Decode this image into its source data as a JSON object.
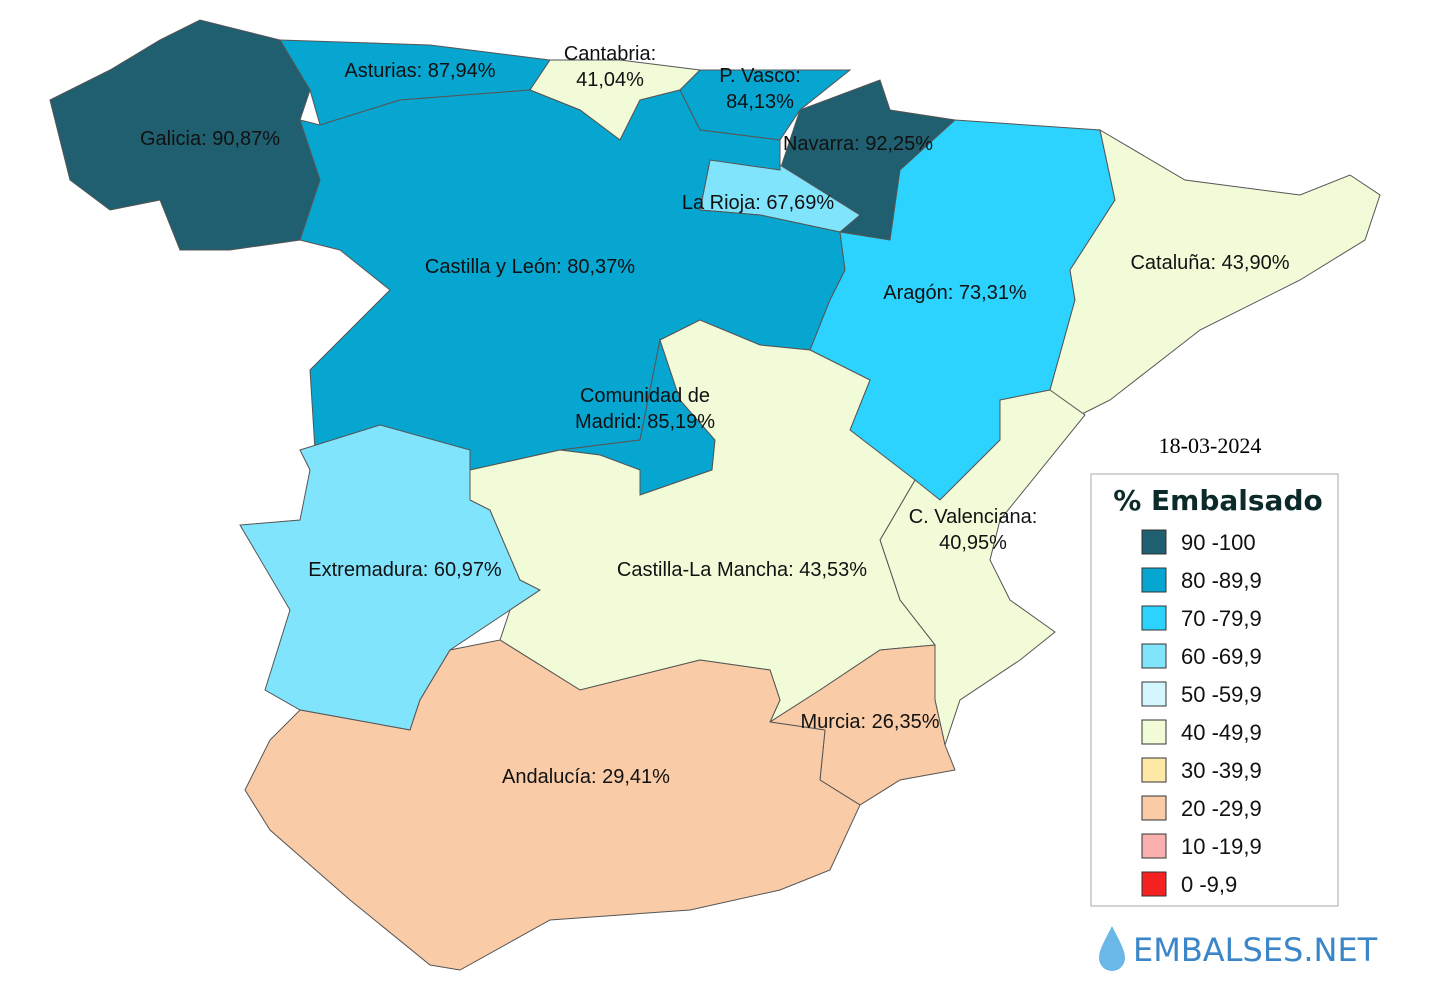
{
  "date": "18-03-2024",
  "regions": [
    {
      "lines": [
        "Galicia: 90,87%"
      ],
      "color": "#1f5f6f"
    },
    {
      "lines": [
        "Asturias: 87,94%"
      ],
      "color": "#06a6d1"
    },
    {
      "lines": [
        "Cantabria:",
        "41,04%"
      ],
      "color": "#f2fbd8"
    },
    {
      "lines": [
        "P. Vasco:",
        "84,13%"
      ],
      "color": "#06a6d1"
    },
    {
      "lines": [
        "Navarra: 92,25%"
      ],
      "color": "#1f5f6f"
    },
    {
      "lines": [
        "La Rioja: 67,69%"
      ],
      "color": "#80e4fc"
    },
    {
      "lines": [
        "Castilla y León: 80,37%"
      ],
      "color": "#06a6d1"
    },
    {
      "lines": [
        "Comunidad de",
        "Madrid: 85,19%"
      ],
      "color": "#06a6d1"
    },
    {
      "lines": [
        "Aragón: 73,31%"
      ],
      "color": "#2bd3fe"
    },
    {
      "lines": [
        "Cataluña: 43,90%"
      ],
      "color": "#f2fbd8"
    },
    {
      "lines": [
        "C. Valenciana:",
        "40,95%"
      ],
      "color": "#f2fbd8"
    },
    {
      "lines": [
        "Extremadura: 60,97%"
      ],
      "color": "#80e4fc"
    },
    {
      "lines": [
        "Castilla-La Mancha: 43,53%"
      ],
      "color": "#f2fbd8"
    },
    {
      "lines": [
        "Murcia: 26,35%"
      ],
      "color": "#f9cba6"
    },
    {
      "lines": [
        "Andalucía: 29,41%"
      ],
      "color": "#f9cba6"
    }
  ],
  "legend": {
    "title": "% Embalsado",
    "items": [
      {
        "label": "90 -100",
        "color": "#1f5f6f"
      },
      {
        "label": "80 -89,9",
        "color": "#06a6d1"
      },
      {
        "label": "70 -79,9",
        "color": "#2bd3fe"
      },
      {
        "label": "60 -69,9",
        "color": "#80e4fc"
      },
      {
        "label": "50 -59,9",
        "color": "#d4f6fd"
      },
      {
        "label": "40 -49,9",
        "color": "#f2fbd8"
      },
      {
        "label": "30 -39,9",
        "color": "#fde8a6"
      },
      {
        "label": "20 -29,9",
        "color": "#f9cba6"
      },
      {
        "label": "10 -19,9",
        "color": "#fbb0b0"
      },
      {
        "label": "0 -9,9",
        "color": "#f62222"
      }
    ]
  },
  "logo": "EMBALSES.NET"
}
